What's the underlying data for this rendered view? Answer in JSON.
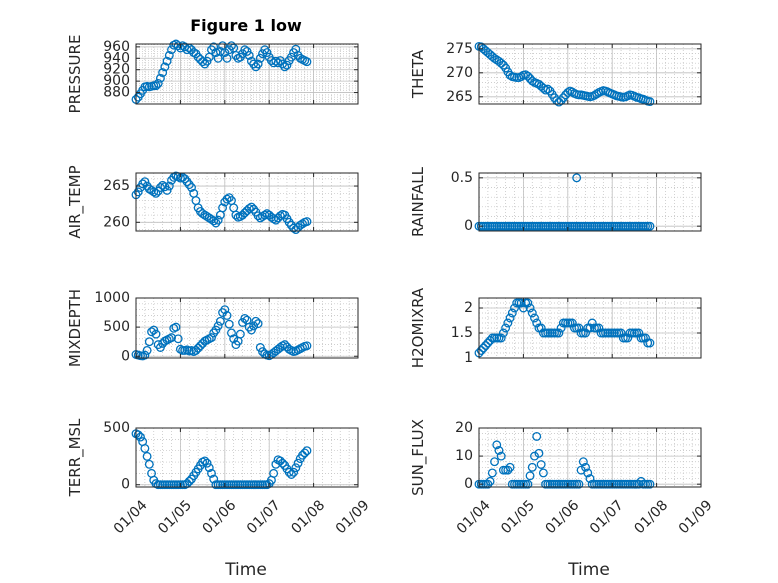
{
  "figure": {
    "title": "Figure 1 low",
    "xlabel": "Time"
  },
  "colors": {
    "marker": "#0072BD",
    "axis": "#262626",
    "grid": "#bfbfbf"
  },
  "chart_data": [
    {
      "type": "scatter",
      "ylabel": "PRESSURE",
      "title": "Figure 1 low",
      "xticks": [
        "01/04",
        "01/05",
        "01/06",
        "01/07",
        "01/08",
        "01/09"
      ],
      "ylim": [
        860,
        965
      ],
      "yticks": [
        880,
        900,
        920,
        940,
        960
      ],
      "x": [
        0.0,
        0.05,
        0.1,
        0.15,
        0.2,
        0.25,
        0.3,
        0.35,
        0.4,
        0.45,
        0.5,
        0.55,
        0.6,
        0.65,
        0.7,
        0.75,
        0.8,
        0.85,
        0.9,
        0.95,
        1.0,
        1.05,
        1.1,
        1.15,
        1.2,
        1.25,
        1.3,
        1.35,
        1.4,
        1.45,
        1.5,
        1.55,
        1.6,
        1.65,
        1.7,
        1.75,
        1.8,
        1.85,
        1.9,
        1.95,
        2.0,
        2.05,
        2.1,
        2.15,
        2.2,
        2.25,
        2.3,
        2.35,
        2.4,
        2.45,
        2.5,
        2.55,
        2.6,
        2.65,
        2.7,
        2.75,
        2.8,
        2.85,
        2.9,
        2.95,
        3.0,
        3.05,
        3.1,
        3.15,
        3.2,
        3.25,
        3.3,
        3.35,
        3.4,
        3.45,
        3.5,
        3.55,
        3.6,
        3.65,
        3.7,
        3.75,
        3.8,
        3.85
      ],
      "y": [
        868,
        872,
        878,
        884,
        890,
        891,
        890,
        891,
        892,
        892,
        896,
        905,
        915,
        925,
        935,
        945,
        955,
        963,
        965,
        962,
        958,
        962,
        960,
        955,
        958,
        955,
        950,
        948,
        942,
        938,
        934,
        930,
        935,
        942,
        955,
        960,
        950,
        940,
        952,
        962,
        950,
        940,
        955,
        962,
        958,
        945,
        940,
        942,
        948,
        955,
        952,
        945,
        935,
        930,
        925,
        930,
        940,
        948,
        955,
        950,
        942,
        936,
        932,
        935,
        932,
        936,
        930,
        925,
        928,
        936,
        942,
        950,
        956,
        945,
        940,
        938,
        936,
        934
      ]
    },
    {
      "type": "scatter",
      "ylabel": "THETA",
      "xticks": [
        "01/04",
        "01/05",
        "01/06",
        "01/07",
        "01/08",
        "01/09"
      ],
      "ylim": [
        263.5,
        276
      ],
      "yticks": [
        265,
        270,
        275
      ],
      "x": [
        0.0,
        0.05,
        0.1,
        0.15,
        0.2,
        0.25,
        0.3,
        0.35,
        0.4,
        0.45,
        0.5,
        0.55,
        0.6,
        0.65,
        0.7,
        0.75,
        0.8,
        0.85,
        0.9,
        0.95,
        1.0,
        1.05,
        1.1,
        1.15,
        1.2,
        1.25,
        1.3,
        1.35,
        1.4,
        1.45,
        1.5,
        1.55,
        1.6,
        1.65,
        1.7,
        1.75,
        1.8,
        1.85,
        1.9,
        1.95,
        2.0,
        2.05,
        2.1,
        2.15,
        2.2,
        2.25,
        2.3,
        2.35,
        2.4,
        2.45,
        2.5,
        2.55,
        2.6,
        2.65,
        2.7,
        2.75,
        2.8,
        2.85,
        2.9,
        2.95,
        3.0,
        3.05,
        3.1,
        3.15,
        3.2,
        3.25,
        3.3,
        3.35,
        3.4,
        3.45,
        3.5,
        3.55,
        3.6,
        3.65,
        3.7,
        3.75,
        3.8,
        3.85
      ],
      "y": [
        275.5,
        275.4,
        275.0,
        274.6,
        274.2,
        273.8,
        273.4,
        273.0,
        272.7,
        272.4,
        272.0,
        271.6,
        271.0,
        270.2,
        269.5,
        269.2,
        269.1,
        269.0,
        269.0,
        269.2,
        269.5,
        269.6,
        269.3,
        268.8,
        268.3,
        268.0,
        267.8,
        267.6,
        267.2,
        266.8,
        266.4,
        266.6,
        266.2,
        265.5,
        264.8,
        264.2,
        263.9,
        264.2,
        264.8,
        265.4,
        265.9,
        266.2,
        266.0,
        265.7,
        265.5,
        265.4,
        265.4,
        265.3,
        265.2,
        265.1,
        265.0,
        265.1,
        265.3,
        265.6,
        265.9,
        266.1,
        266.3,
        266.2,
        266.0,
        265.8,
        265.6,
        265.4,
        265.2,
        265.1,
        265.0,
        264.9,
        265.0,
        265.2,
        265.4,
        265.3,
        265.1,
        264.9,
        264.8,
        264.6,
        264.5,
        264.3,
        264.1,
        264.0
      ]
    },
    {
      "type": "scatter",
      "ylabel": "AIR_TEMP",
      "xticks": [
        "01/04",
        "01/05",
        "01/06",
        "01/07",
        "01/08",
        "01/09"
      ],
      "ylim": [
        258.8,
        266.8
      ],
      "yticks": [
        260,
        265
      ],
      "x": [
        0.0,
        0.05,
        0.1,
        0.15,
        0.2,
        0.25,
        0.3,
        0.35,
        0.4,
        0.45,
        0.5,
        0.55,
        0.6,
        0.65,
        0.7,
        0.75,
        0.8,
        0.85,
        0.9,
        0.95,
        1.0,
        1.05,
        1.1,
        1.15,
        1.2,
        1.25,
        1.3,
        1.35,
        1.4,
        1.45,
        1.5,
        1.55,
        1.6,
        1.65,
        1.7,
        1.75,
        1.8,
        1.85,
        1.9,
        1.95,
        2.0,
        2.05,
        2.1,
        2.15,
        2.2,
        2.25,
        2.3,
        2.35,
        2.4,
        2.45,
        2.5,
        2.55,
        2.6,
        2.65,
        2.7,
        2.75,
        2.8,
        2.85,
        2.9,
        2.95,
        3.0,
        3.05,
        3.1,
        3.15,
        3.2,
        3.25,
        3.3,
        3.35,
        3.4,
        3.45,
        3.5,
        3.55,
        3.6,
        3.65,
        3.7,
        3.75,
        3.8,
        3.85
      ],
      "y": [
        263.8,
        264.2,
        264.8,
        265.3,
        265.6,
        265.0,
        264.6,
        264.4,
        264.2,
        264.0,
        264.3,
        264.8,
        265.1,
        264.9,
        264.4,
        265.0,
        265.8,
        266.2,
        266.4,
        266.3,
        266.1,
        266.2,
        266.0,
        265.6,
        265.2,
        264.8,
        264.0,
        263.0,
        262.0,
        261.5,
        261.2,
        261.0,
        260.8,
        260.6,
        260.4,
        260.2,
        259.9,
        260.3,
        261.0,
        262.0,
        262.8,
        263.2,
        263.4,
        263.0,
        262.0,
        261.0,
        260.7,
        260.8,
        261.0,
        261.3,
        261.6,
        261.9,
        262.1,
        261.8,
        261.4,
        260.9,
        260.6,
        260.8,
        261.0,
        261.2,
        261.0,
        260.7,
        260.5,
        260.3,
        260.6,
        260.9,
        261.1,
        261.0,
        260.5,
        260.0,
        259.6,
        259.2,
        259.0,
        259.3,
        259.6,
        259.8,
        260.0,
        260.1
      ]
    },
    {
      "type": "scatter",
      "ylabel": "RAINFALL",
      "xticks": [
        "01/04",
        "01/05",
        "01/06",
        "01/07",
        "01/08",
        "01/09"
      ],
      "ylim": [
        -0.05,
        0.55
      ],
      "yticks": [
        0,
        0.5
      ],
      "x": [
        0.0,
        0.05,
        0.1,
        0.15,
        0.2,
        0.25,
        0.3,
        0.35,
        0.4,
        0.45,
        0.5,
        0.55,
        0.6,
        0.65,
        0.7,
        0.75,
        0.8,
        0.85,
        0.9,
        0.95,
        1.0,
        1.05,
        1.1,
        1.15,
        1.2,
        1.25,
        1.3,
        1.35,
        1.4,
        1.45,
        1.5,
        1.55,
        1.6,
        1.65,
        1.7,
        1.75,
        1.8,
        1.85,
        1.9,
        1.95,
        2.0,
        2.05,
        2.1,
        2.15,
        2.2,
        2.25,
        2.3,
        2.35,
        2.4,
        2.45,
        2.5,
        2.55,
        2.6,
        2.65,
        2.7,
        2.75,
        2.8,
        2.85,
        2.9,
        2.95,
        3.0,
        3.05,
        3.1,
        3.15,
        3.2,
        3.25,
        3.3,
        3.35,
        3.4,
        3.45,
        3.5,
        3.55,
        3.6,
        3.65,
        3.7,
        3.75,
        3.8,
        3.85,
        2.2
      ],
      "y": [
        0,
        0,
        0,
        0,
        0,
        0,
        0,
        0,
        0,
        0,
        0,
        0,
        0,
        0,
        0,
        0,
        0,
        0,
        0,
        0,
        0,
        0,
        0,
        0,
        0,
        0,
        0,
        0,
        0,
        0,
        0,
        0,
        0,
        0,
        0,
        0,
        0,
        0,
        0,
        0,
        0,
        0,
        0,
        0,
        0,
        0,
        0,
        0,
        0,
        0,
        0,
        0,
        0,
        0,
        0,
        0,
        0,
        0,
        0,
        0,
        0,
        0,
        0,
        0,
        0,
        0,
        0,
        0,
        0,
        0,
        0,
        0,
        0,
        0,
        0,
        0,
        0,
        0,
        0.5
      ]
    },
    {
      "type": "scatter",
      "ylabel": "MIXDEPTH",
      "xticks": [
        "01/04",
        "01/05",
        "01/06",
        "01/07",
        "01/08",
        "01/09"
      ],
      "ylim": [
        -30,
        1000
      ],
      "yticks": [
        0,
        500,
        1000
      ],
      "x": [
        0.0,
        0.05,
        0.1,
        0.15,
        0.2,
        0.25,
        0.3,
        0.35,
        0.4,
        0.45,
        0.5,
        0.55,
        0.6,
        0.65,
        0.7,
        0.75,
        0.8,
        0.85,
        0.9,
        0.95,
        1.0,
        1.05,
        1.1,
        1.15,
        1.2,
        1.25,
        1.3,
        1.35,
        1.4,
        1.45,
        1.5,
        1.55,
        1.6,
        1.65,
        1.7,
        1.75,
        1.8,
        1.85,
        1.9,
        1.95,
        2.0,
        2.05,
        2.1,
        2.15,
        2.2,
        2.25,
        2.3,
        2.35,
        2.4,
        2.45,
        2.5,
        2.55,
        2.6,
        2.65,
        2.7,
        2.75,
        2.8,
        2.85,
        2.9,
        2.95,
        3.0,
        3.05,
        3.1,
        3.15,
        3.2,
        3.25,
        3.3,
        3.35,
        3.4,
        3.45,
        3.5,
        3.55,
        3.6,
        3.65,
        3.7,
        3.75,
        3.8,
        3.85
      ],
      "y": [
        30,
        20,
        10,
        5,
        20,
        100,
        250,
        420,
        450,
        380,
        200,
        150,
        220,
        260,
        280,
        300,
        320,
        480,
        500,
        300,
        120,
        100,
        100,
        110,
        90,
        100,
        80,
        100,
        140,
        180,
        220,
        260,
        280,
        300,
        320,
        400,
        450,
        520,
        600,
        750,
        800,
        700,
        550,
        400,
        300,
        200,
        260,
        380,
        580,
        650,
        620,
        500,
        450,
        520,
        600,
        560,
        150,
        80,
        40,
        20,
        10,
        30,
        60,
        90,
        120,
        150,
        180,
        200,
        160,
        120,
        100,
        80,
        90,
        110,
        130,
        150,
        170,
        180
      ]
    },
    {
      "type": "scatter",
      "ylabel": "H2OMIXRA",
      "xticks": [
        "01/04",
        "01/05",
        "01/06",
        "01/07",
        "01/08",
        "01/09"
      ],
      "ylim": [
        1,
        2.2
      ],
      "yticks": [
        1,
        1.5,
        2
      ],
      "x": [
        0.0,
        0.05,
        0.1,
        0.15,
        0.2,
        0.25,
        0.3,
        0.35,
        0.4,
        0.45,
        0.5,
        0.55,
        0.6,
        0.65,
        0.7,
        0.75,
        0.8,
        0.85,
        0.9,
        0.95,
        1.0,
        1.05,
        1.1,
        1.15,
        1.2,
        1.25,
        1.3,
        1.35,
        1.4,
        1.45,
        1.5,
        1.55,
        1.6,
        1.65,
        1.7,
        1.75,
        1.8,
        1.85,
        1.9,
        1.95,
        2.0,
        2.05,
        2.1,
        2.15,
        2.2,
        2.25,
        2.3,
        2.35,
        2.4,
        2.45,
        2.5,
        2.55,
        2.6,
        2.65,
        2.7,
        2.75,
        2.8,
        2.85,
        2.9,
        2.95,
        3.0,
        3.05,
        3.1,
        3.15,
        3.2,
        3.25,
        3.3,
        3.35,
        3.4,
        3.45,
        3.5,
        3.55,
        3.6,
        3.65,
        3.7,
        3.75,
        3.8,
        3.85
      ],
      "y": [
        1.1,
        1.15,
        1.2,
        1.25,
        1.3,
        1.35,
        1.4,
        1.4,
        1.4,
        1.4,
        1.4,
        1.5,
        1.6,
        1.7,
        1.8,
        1.9,
        2.0,
        2.1,
        2.1,
        2.1,
        2.0,
        2.1,
        2.1,
        2.0,
        1.9,
        1.8,
        1.7,
        1.6,
        1.6,
        1.5,
        1.5,
        1.5,
        1.5,
        1.5,
        1.5,
        1.5,
        1.5,
        1.6,
        1.7,
        1.7,
        1.7,
        1.7,
        1.7,
        1.6,
        1.6,
        1.6,
        1.5,
        1.5,
        1.5,
        1.6,
        1.6,
        1.7,
        1.6,
        1.6,
        1.6,
        1.5,
        1.5,
        1.5,
        1.5,
        1.5,
        1.5,
        1.5,
        1.5,
        1.5,
        1.5,
        1.4,
        1.4,
        1.4,
        1.5,
        1.5,
        1.5,
        1.5,
        1.5,
        1.4,
        1.4,
        1.4,
        1.3,
        1.3
      ]
    },
    {
      "type": "scatter",
      "ylabel": "TERR_MSL",
      "xticks": [
        "01/04",
        "01/05",
        "01/06",
        "01/07",
        "01/08",
        "01/09"
      ],
      "ylim": [
        -20,
        500
      ],
      "yticks": [
        0,
        500
      ],
      "x": [
        0.0,
        0.05,
        0.1,
        0.15,
        0.2,
        0.25,
        0.3,
        0.35,
        0.4,
        0.45,
        0.5,
        0.55,
        0.6,
        0.65,
        0.7,
        0.75,
        0.8,
        0.85,
        0.9,
        0.95,
        1.0,
        1.05,
        1.1,
        1.15,
        1.2,
        1.25,
        1.3,
        1.35,
        1.4,
        1.45,
        1.5,
        1.55,
        1.6,
        1.65,
        1.7,
        1.75,
        1.8,
        1.85,
        1.9,
        1.95,
        2.0,
        2.05,
        2.1,
        2.15,
        2.2,
        2.25,
        2.3,
        2.35,
        2.4,
        2.45,
        2.5,
        2.55,
        2.6,
        2.65,
        2.7,
        2.75,
        2.8,
        2.85,
        2.9,
        2.95,
        3.0,
        3.05,
        3.1,
        3.15,
        3.2,
        3.25,
        3.3,
        3.35,
        3.4,
        3.45,
        3.5,
        3.55,
        3.6,
        3.65,
        3.7,
        3.75,
        3.8,
        3.85
      ],
      "y": [
        450,
        440,
        420,
        380,
        320,
        250,
        180,
        100,
        40,
        10,
        0,
        0,
        0,
        0,
        0,
        0,
        0,
        0,
        0,
        0,
        0,
        0,
        0,
        10,
        30,
        50,
        80,
        110,
        140,
        170,
        200,
        210,
        190,
        150,
        100,
        50,
        0,
        0,
        0,
        0,
        0,
        0,
        0,
        0,
        0,
        0,
        0,
        0,
        0,
        0,
        0,
        0,
        0,
        0,
        0,
        0,
        0,
        0,
        0,
        0,
        10,
        40,
        100,
        180,
        220,
        210,
        190,
        170,
        140,
        110,
        90,
        110,
        150,
        190,
        230,
        260,
        280,
        300
      ]
    },
    {
      "type": "scatter",
      "ylabel": "SUN_FLUX",
      "xticks": [
        "01/04",
        "01/05",
        "01/06",
        "01/07",
        "01/08",
        "01/09"
      ],
      "ylim": [
        -1,
        20
      ],
      "yticks": [
        0,
        10,
        20
      ],
      "x": [
        0.0,
        0.05,
        0.1,
        0.15,
        0.2,
        0.25,
        0.3,
        0.35,
        0.4,
        0.45,
        0.5,
        0.55,
        0.6,
        0.65,
        0.7,
        0.75,
        0.8,
        0.85,
        0.9,
        0.95,
        1.0,
        1.05,
        1.1,
        1.15,
        1.2,
        1.25,
        1.3,
        1.35,
        1.4,
        1.45,
        1.5,
        1.55,
        1.6,
        1.65,
        1.7,
        1.75,
        1.8,
        1.85,
        1.9,
        1.95,
        2.0,
        2.05,
        2.1,
        2.15,
        2.2,
        2.25,
        2.3,
        2.35,
        2.4,
        2.45,
        2.5,
        2.55,
        2.6,
        2.65,
        2.7,
        2.75,
        2.8,
        2.85,
        2.9,
        2.95,
        3.0,
        3.05,
        3.1,
        3.15,
        3.2,
        3.25,
        3.3,
        3.35,
        3.4,
        3.45,
        3.5,
        3.55,
        3.6,
        3.65,
        3.7,
        3.75,
        3.8,
        3.85
      ],
      "y": [
        0,
        0,
        0,
        0,
        0,
        1,
        4,
        8,
        14,
        12,
        10,
        5,
        5,
        5,
        6,
        0,
        0,
        0,
        0,
        0,
        0,
        0,
        0,
        3,
        6,
        10,
        17,
        11,
        7,
        4,
        0,
        0,
        0,
        0,
        0,
        0,
        0,
        0,
        0,
        0,
        0,
        0,
        0,
        0,
        0,
        0,
        5,
        8,
        6,
        4,
        2,
        0,
        0,
        0,
        0,
        0,
        0,
        0,
        0,
        0,
        0,
        0,
        0,
        0,
        0,
        0,
        0,
        0,
        0,
        0,
        0,
        0,
        0,
        1,
        0,
        0,
        0,
        0
      ]
    }
  ]
}
